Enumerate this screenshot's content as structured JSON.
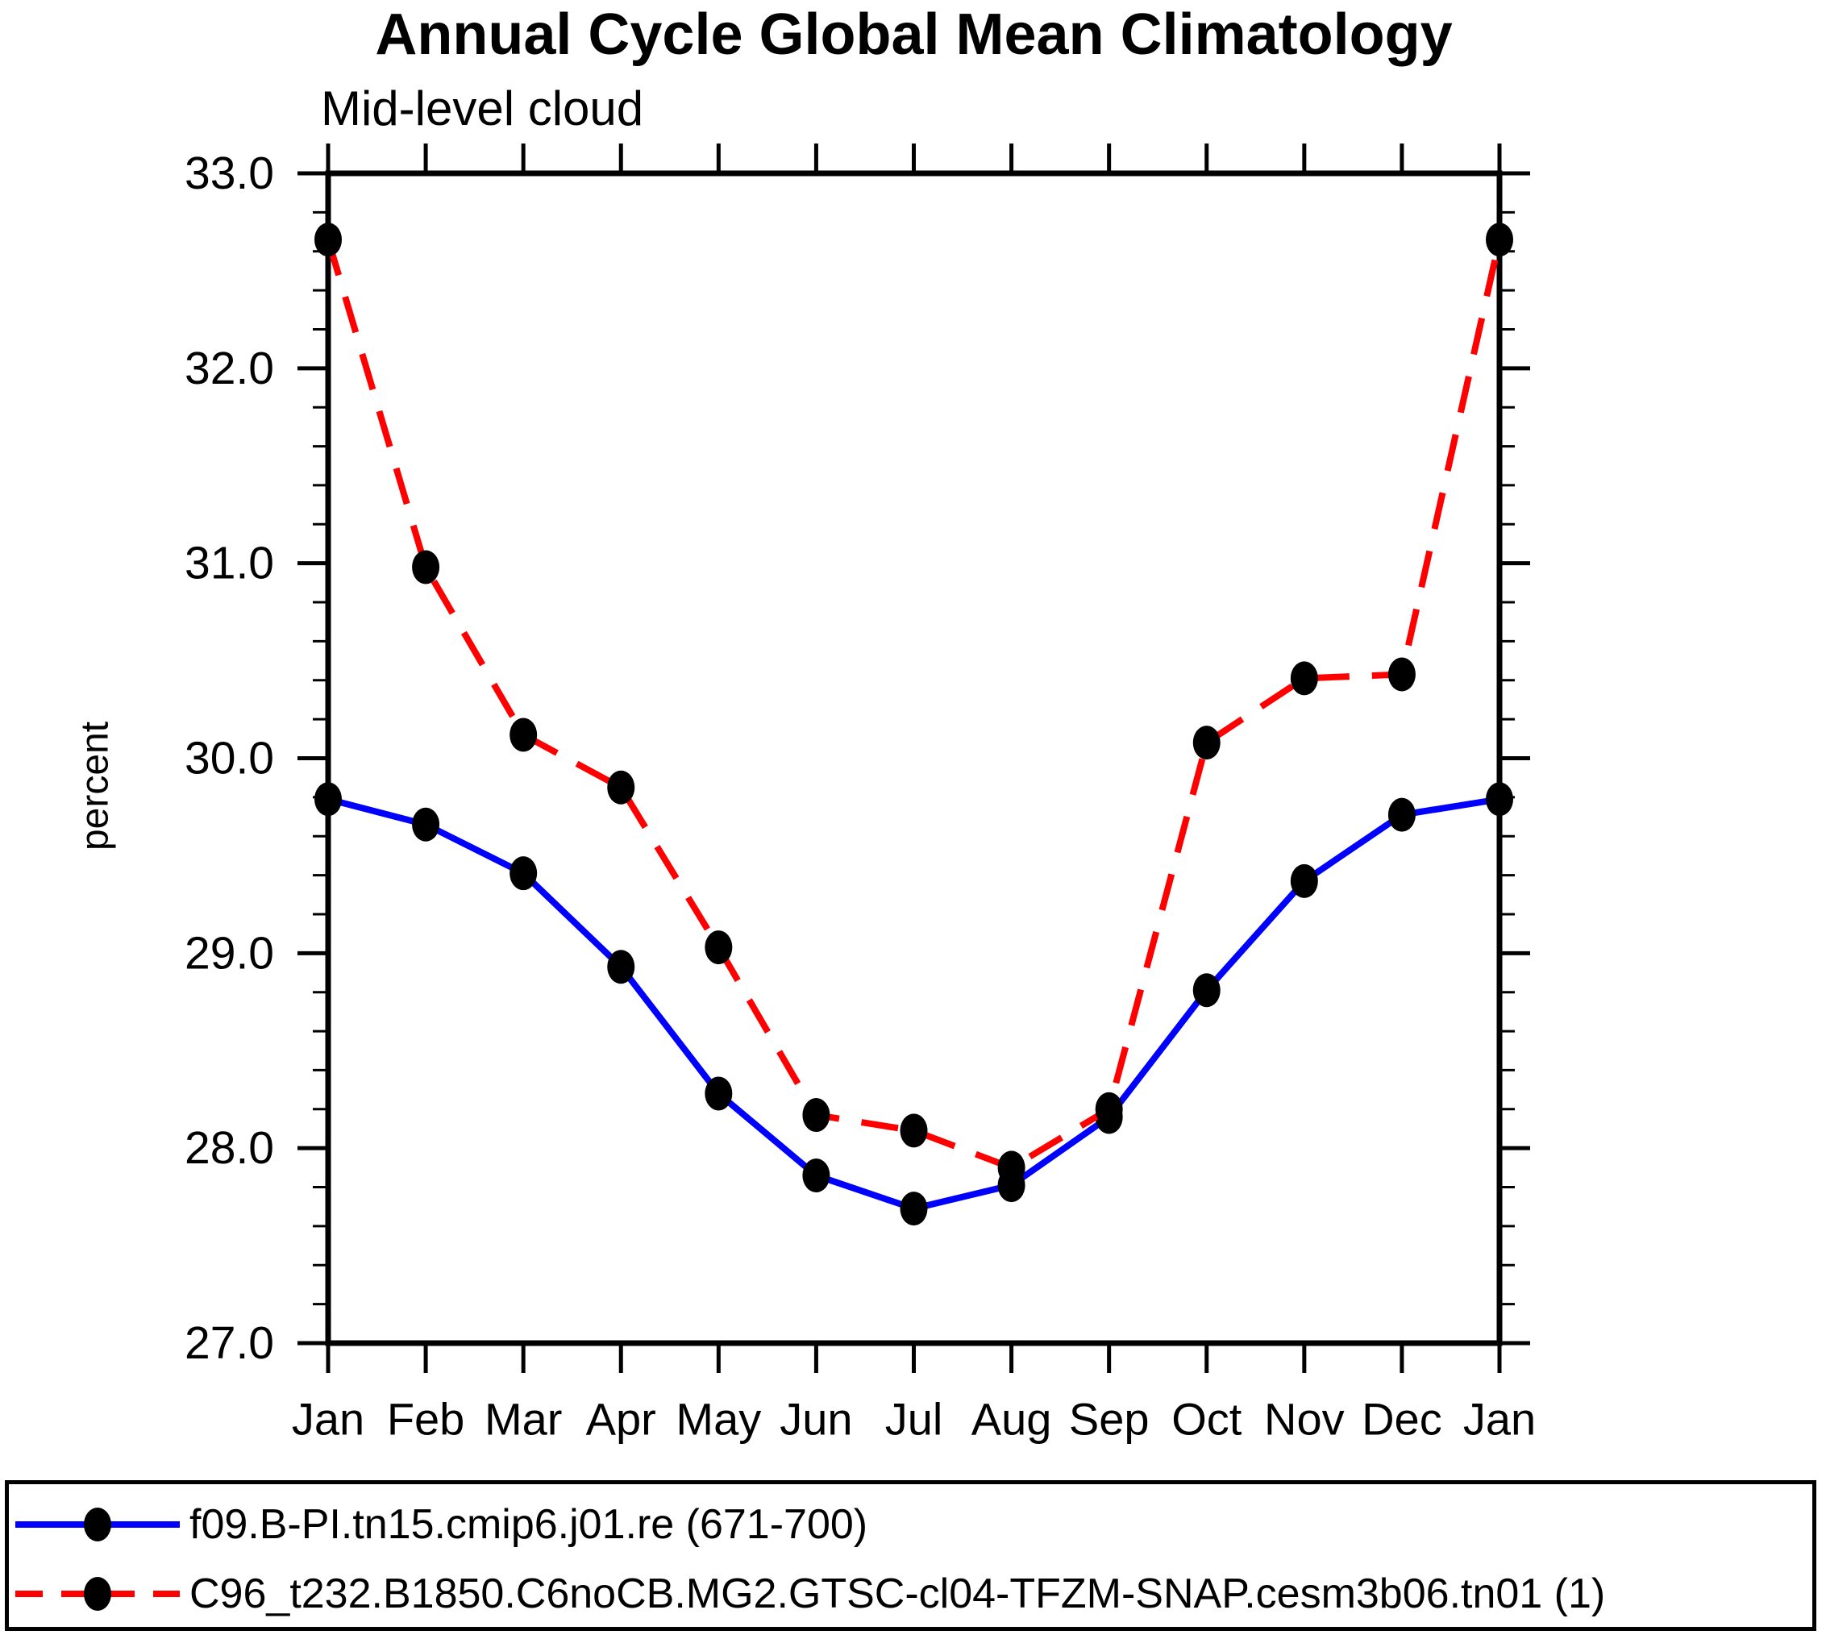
{
  "chart_data": {
    "type": "line",
    "title": "Annual Cycle Global Mean Climatology",
    "subtitle": "Mid-level cloud",
    "ylabel": "percent",
    "categories": [
      "Jan",
      "Feb",
      "Mar",
      "Apr",
      "May",
      "Jun",
      "Jul",
      "Aug",
      "Sep",
      "Oct",
      "Nov",
      "Dec",
      "Jan"
    ],
    "series": [
      {
        "name": "f09.B-PI.tn15.cmip6.j01.re (671-700)",
        "color": "#0000ff",
        "line_style": "solid",
        "marker": "filled-black-dot",
        "values": [
          29.79,
          29.66,
          29.41,
          28.93,
          28.28,
          27.86,
          27.69,
          27.81,
          28.16,
          28.81,
          29.37,
          29.71,
          29.79
        ]
      },
      {
        "name": "C96_t232.B1850.C6noCB.MG2.GTSC-cl04-TFZM-SNAP.cesm3b06.tn01 (1)",
        "color": "#ff0000",
        "line_style": "dashed",
        "marker": "filled-black-dot",
        "values": [
          32.66,
          30.98,
          30.12,
          29.85,
          29.03,
          28.17,
          28.09,
          27.9,
          28.2,
          30.08,
          30.41,
          30.43,
          32.66
        ]
      }
    ],
    "ylim": [
      27.0,
      33.0
    ],
    "ytick_major_step": 1.0,
    "ytick_minor_step": 0.2,
    "ytick_labels": [
      "27.0",
      "28.0",
      "29.0",
      "30.0",
      "31.0",
      "32.0",
      "33.0"
    ],
    "xlabel": "",
    "grid": false,
    "legend_position": "bottom",
    "axis_color": "#000000",
    "marker_color": "#000000",
    "background_color": "#ffffff"
  }
}
